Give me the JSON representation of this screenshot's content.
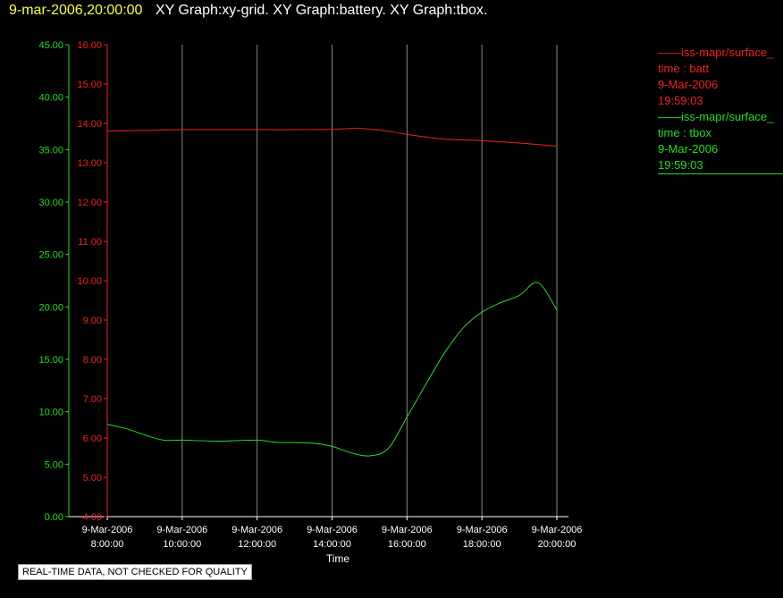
{
  "header": {
    "datetime": "9-mar-2006,20:00:00",
    "graphs": "XY Graph:xy-grid.  XY Graph:battery.  XY Graph:tbox."
  },
  "legend": [
    {
      "name": "iss-mapr/surface_",
      "var": "time : batt",
      "date": "9-Mar-2006",
      "time": "19:59:03",
      "color": "#e22"
    },
    {
      "name": "iss-mapr/surface_",
      "var": "time : tbox",
      "date": "9-Mar-2006",
      "time": "19:59:03",
      "color": "#2d2"
    }
  ],
  "footer": {
    "quality_note": "REAL-TIME DATA, NOT CHECKED FOR QUALITY"
  },
  "chart_data": {
    "type": "line",
    "xlabel": "Time",
    "x_ticks": [
      [
        "9-Mar-2006",
        "8:00:00"
      ],
      [
        "9-Mar-2006",
        "10:00:00"
      ],
      [
        "9-Mar-2006",
        "12:00:00"
      ],
      [
        "9-Mar-2006",
        "14:00:00"
      ],
      [
        "9-Mar-2006",
        "16:00:00"
      ],
      [
        "9-Mar-2006",
        "18:00:00"
      ],
      [
        "9-Mar-2006",
        "20:00:00"
      ]
    ],
    "x_range": [
      "2006-03-09 08:00",
      "2006-03-09 20:00"
    ],
    "grid": "vertical",
    "axes": [
      {
        "id": "tbox",
        "color": "#2d2",
        "range": [
          0,
          45
        ],
        "ticks": [
          "0.00",
          "5.00",
          "10.00",
          "15.00",
          "20.00",
          "25.00",
          "30.00",
          "35.00",
          "40.00",
          "45.00"
        ]
      },
      {
        "id": "batt",
        "color": "#e22",
        "range": [
          4,
          16
        ],
        "ticks": [
          "4.00",
          "5.00",
          "6.00",
          "7.00",
          "8.00",
          "9.00",
          "10.00",
          "11.00",
          "12.00",
          "13.00",
          "14.00",
          "15.00",
          "16.00"
        ]
      }
    ],
    "series": [
      {
        "axis": "batt",
        "color": "#e22",
        "x": [
          "2006-03-09 08:00",
          "2006-03-09 09:00",
          "2006-03-09 10:00",
          "2006-03-09 11:00",
          "2006-03-09 12:00",
          "2006-03-09 13:00",
          "2006-03-09 14:00",
          "2006-03-09 14:45",
          "2006-03-09 15:30",
          "2006-03-09 16:00",
          "2006-03-09 17:00",
          "2006-03-09 18:00",
          "2006-03-09 19:00",
          "2006-03-09 20:00"
        ],
        "y": [
          13.8,
          13.82,
          13.84,
          13.84,
          13.84,
          13.84,
          13.85,
          13.87,
          13.8,
          13.72,
          13.6,
          13.56,
          13.5,
          13.42
        ]
      },
      {
        "axis": "tbox",
        "color": "#2d2",
        "x": [
          "2006-03-09 08:00",
          "2006-03-09 08:30",
          "2006-03-09 09:00",
          "2006-03-09 09:30",
          "2006-03-09 10:00",
          "2006-03-09 11:00",
          "2006-03-09 12:00",
          "2006-03-09 12:30",
          "2006-03-09 13:30",
          "2006-03-09 14:00",
          "2006-03-09 14:30",
          "2006-03-09 15:00",
          "2006-03-09 15:30",
          "2006-03-09 16:00",
          "2006-03-09 16:30",
          "2006-03-09 17:00",
          "2006-03-09 17:30",
          "2006-03-09 18:00",
          "2006-03-09 18:30",
          "2006-03-09 19:00",
          "2006-03-09 19:30",
          "2006-03-09 20:00"
        ],
        "y": [
          8.8,
          8.4,
          7.8,
          7.3,
          7.3,
          7.2,
          7.3,
          7.1,
          7.0,
          6.7,
          6.1,
          5.8,
          6.5,
          9.5,
          12.6,
          15.6,
          18.0,
          19.5,
          20.4,
          21.1,
          22.3,
          19.7
        ]
      }
    ]
  }
}
